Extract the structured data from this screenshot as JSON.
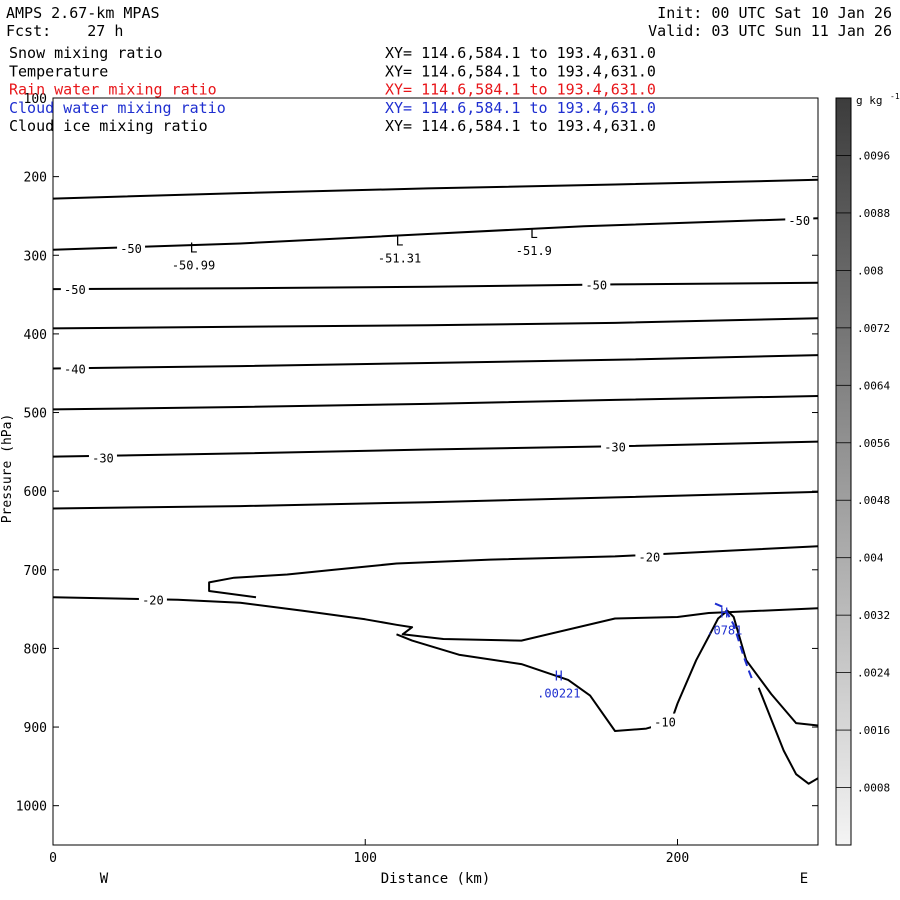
{
  "header": {
    "model": "AMPS 2.67-km MPAS",
    "forecast": "Fcst:    27 h",
    "init": "Init: 00 UTC Sat 10 Jan 26",
    "valid": "Valid: 03 UTC Sun 11 Jan 26"
  },
  "fields": [
    {
      "name": "Snow mixing ratio",
      "xy": "XY= 114.6,584.1 to 193.4,631.0",
      "color": "#000000"
    },
    {
      "name": "Temperature",
      "xy": "XY= 114.6,584.1 to 193.4,631.0",
      "color": "#000000"
    },
    {
      "name": "Rain water mixing ratio",
      "xy": "XY= 114.6,584.1 to 193.4,631.0",
      "color": "#e8161a"
    },
    {
      "name": "Cloud water mixing ratio",
      "xy": "XY= 114.6,584.1 to 193.4,631.0",
      "color": "#1f2fd0"
    },
    {
      "name": "Cloud ice mixing ratio",
      "xy": "XY= 114.6,584.1 to 193.4,631.0",
      "color": "#000000"
    }
  ],
  "chart_data": {
    "type": "line",
    "xlabel": "Distance (km)",
    "ylabel": "Pressure (hPa)",
    "xlim": [
      0,
      245
    ],
    "ylim": [
      1050,
      100
    ],
    "x_ticks": [
      0,
      100,
      200
    ],
    "y_ticks": [
      100,
      200,
      300,
      400,
      500,
      600,
      700,
      800,
      900,
      1000
    ],
    "direction_labels": {
      "left": "W",
      "right": "E"
    },
    "temperature_contours": [
      {
        "label": "",
        "points": [
          [
            0,
            228
          ],
          [
            60,
            221
          ],
          [
            120,
            215
          ],
          [
            180,
            210
          ],
          [
            245,
            204
          ]
        ]
      },
      {
        "label": "-50",
        "points": [
          [
            0,
            293
          ],
          [
            60,
            285
          ],
          [
            120,
            273
          ],
          [
            170,
            263
          ],
          [
            245,
            253
          ]
        ]
      },
      {
        "label": "-50",
        "points": [
          [
            0,
            343
          ],
          [
            60,
            342
          ],
          [
            120,
            340
          ],
          [
            180,
            337
          ],
          [
            245,
            335
          ]
        ]
      },
      {
        "label": "",
        "points": [
          [
            0,
            393
          ],
          [
            60,
            391
          ],
          [
            120,
            389
          ],
          [
            180,
            386
          ],
          [
            245,
            380
          ]
        ]
      },
      {
        "label": "-40",
        "points": [
          [
            0,
            444
          ],
          [
            60,
            441
          ],
          [
            120,
            437
          ],
          [
            180,
            433
          ],
          [
            245,
            427
          ]
        ]
      },
      {
        "label": "",
        "points": [
          [
            0,
            496
          ],
          [
            60,
            493
          ],
          [
            120,
            489
          ],
          [
            180,
            484
          ],
          [
            245,
            479
          ]
        ]
      },
      {
        "label": "-30",
        "points": [
          [
            0,
            556
          ],
          [
            60,
            552
          ],
          [
            120,
            547
          ],
          [
            180,
            543
          ],
          [
            245,
            537
          ]
        ]
      },
      {
        "label": "",
        "points": [
          [
            0,
            622
          ],
          [
            60,
            619
          ],
          [
            120,
            614
          ],
          [
            180,
            608
          ],
          [
            245,
            601
          ]
        ]
      },
      {
        "label": "-20",
        "points": [
          [
            65,
            735
          ],
          [
            50,
            727
          ],
          [
            50,
            716
          ],
          [
            58,
            710
          ],
          [
            75,
            706
          ],
          [
            90,
            700
          ],
          [
            110,
            692
          ],
          [
            140,
            687
          ],
          [
            180,
            683
          ],
          [
            245,
            670
          ]
        ]
      },
      {
        "label": "-20",
        "points": [
          [
            0,
            735
          ],
          [
            40,
            738
          ],
          [
            60,
            742
          ],
          [
            80,
            752
          ],
          [
            100,
            763
          ],
          [
            110,
            770
          ],
          [
            115,
            773
          ],
          [
            112,
            782
          ],
          [
            125,
            788
          ],
          [
            150,
            790
          ],
          [
            180,
            762
          ],
          [
            200,
            760
          ],
          [
            210,
            755
          ],
          [
            245,
            749
          ]
        ]
      },
      {
        "label": "-10",
        "points": [
          [
            110,
            782
          ],
          [
            115,
            790
          ],
          [
            130,
            808
          ],
          [
            150,
            820
          ],
          [
            165,
            840
          ],
          [
            172,
            860
          ],
          [
            180,
            905
          ],
          [
            190,
            902
          ],
          [
            198,
            893
          ],
          [
            200,
            870
          ],
          [
            206,
            815
          ],
          [
            210,
            785
          ],
          [
            213,
            762
          ],
          [
            216,
            752
          ],
          [
            218,
            760
          ],
          [
            222,
            815
          ],
          [
            230,
            858
          ],
          [
            238,
            895
          ],
          [
            245,
            898
          ]
        ]
      },
      {
        "label": "",
        "points": [
          [
            226,
            850
          ],
          [
            230,
            890
          ],
          [
            234,
            930
          ],
          [
            238,
            960
          ],
          [
            242,
            972
          ],
          [
            245,
            965
          ]
        ]
      }
    ],
    "temperature_labels": [
      {
        "text": "-50",
        "x": 25,
        "p": 291
      },
      {
        "text": "-50",
        "x": 7,
        "p": 343
      },
      {
        "text": "-50",
        "x": 174,
        "p": 337
      },
      {
        "text": "-50",
        "x": 239,
        "p": 255
      },
      {
        "text": "-40",
        "x": 7,
        "p": 444
      },
      {
        "text": "-30",
        "x": 16,
        "p": 557
      },
      {
        "text": "-30",
        "x": 180,
        "p": 543
      },
      {
        "text": "-20",
        "x": 191,
        "p": 683
      },
      {
        "text": "-20",
        "x": 32,
        "p": 738
      },
      {
        "text": "-10",
        "x": 196,
        "p": 893
      }
    ],
    "extrema": [
      {
        "type": "L",
        "value": "-50.99",
        "x": 45,
        "p": 312,
        "color": "#000000"
      },
      {
        "type": "L",
        "value": "-51.31",
        "x": 111,
        "p": 303,
        "color": "#000000"
      },
      {
        "type": "L",
        "value": "-51.9",
        "x": 154,
        "p": 293,
        "color": "#000000"
      },
      {
        "type": "H",
        "value": ".00221",
        "x": 162,
        "p": 856,
        "color": "#1f2fd0"
      },
      {
        "type": "H",
        "value": ".0781",
        "x": 215,
        "p": 776,
        "color": "#1f2fd0"
      }
    ],
    "cloud_water_contour": {
      "points": [
        [
          212,
          743
        ],
        [
          215,
          748
        ],
        [
          218,
          770
        ],
        [
          221,
          808
        ],
        [
          223,
          830
        ],
        [
          224,
          840
        ]
      ]
    },
    "colorbar": {
      "unit_label": "g kg",
      "unit_exponent": "-1",
      "ticks": [
        ".0096",
        ".0088",
        ".008",
        ".0072",
        ".0064",
        ".0056",
        ".0048",
        ".004",
        ".0032",
        ".0024",
        ".0016",
        ".0008"
      ],
      "color_top": "#3c3c3c",
      "color_bottom": "#f4f4f4"
    }
  }
}
